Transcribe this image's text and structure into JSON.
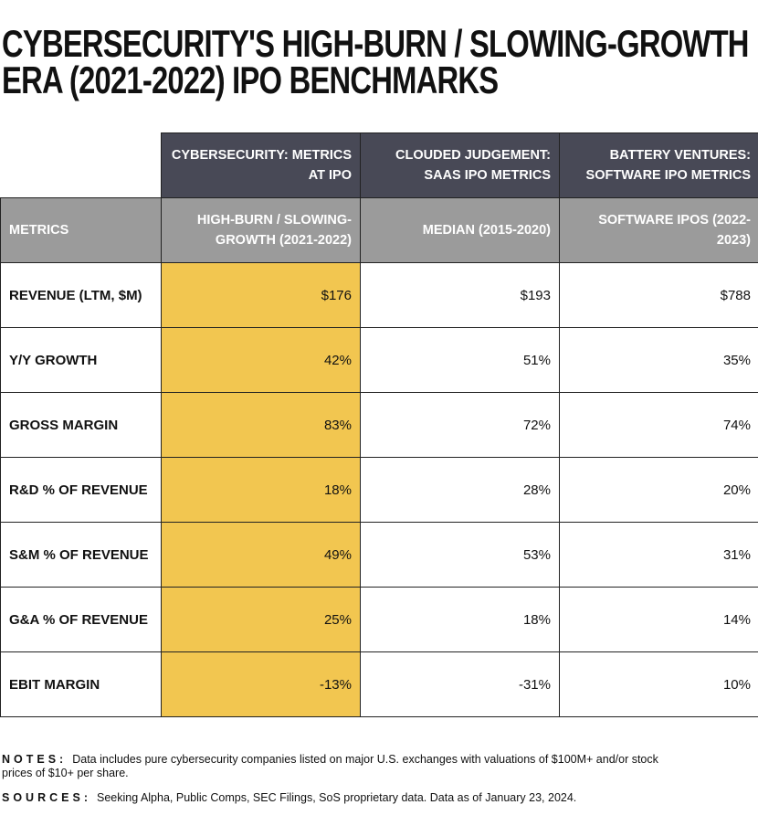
{
  "title_line1": "CYBERSECURITY'S HIGH-BURN / SLOWING-GROWTH",
  "title_line2": "ERA (2021-2022) IPO BENCHMARKS",
  "colors": {
    "header_dark": "#484956",
    "header_gray": "#9b9b9b",
    "highlight": "#f2c650"
  },
  "chart_data": {
    "type": "table",
    "group_headers": [
      "",
      "CYBERSECURITY: METRICS AT IPO",
      "CLOUDED JUDGEMENT: SAAS IPO METRICS",
      "BATTERY VENTURES: SOFTWARE IPO METRICS"
    ],
    "columns": [
      "METRICS",
      "HIGH-BURN / SLOWING-GROWTH (2021-2022)",
      "MEDIAN (2015-2020)",
      "SOFTWARE IPOS (2022-2023)"
    ],
    "rows": [
      [
        "REVENUE (LTM, $M)",
        "$176",
        "$193",
        "$788"
      ],
      [
        "Y/Y GROWTH",
        "42%",
        "51%",
        "35%"
      ],
      [
        "GROSS MARGIN",
        "83%",
        "72%",
        "74%"
      ],
      [
        "R&D % OF REVENUE",
        "18%",
        "28%",
        "20%"
      ],
      [
        "S&M % OF REVENUE",
        "49%",
        "53%",
        "31%"
      ],
      [
        "G&A % OF REVENUE",
        "25%",
        "18%",
        "14%"
      ],
      [
        "EBIT MARGIN",
        "-13%",
        "-31%",
        "10%"
      ]
    ]
  },
  "notes_label": "NOTES:",
  "notes_text": "Data includes pure cybersecurity companies listed on major U.S. exchanges with valuations of $100M+ and/or stock prices of $10+ per share.",
  "sources_label": "SOURCES:",
  "sources_text": "Seeking Alpha, Public Comps, SEC Filings, SoS proprietary data. Data as of January 23, 2024."
}
